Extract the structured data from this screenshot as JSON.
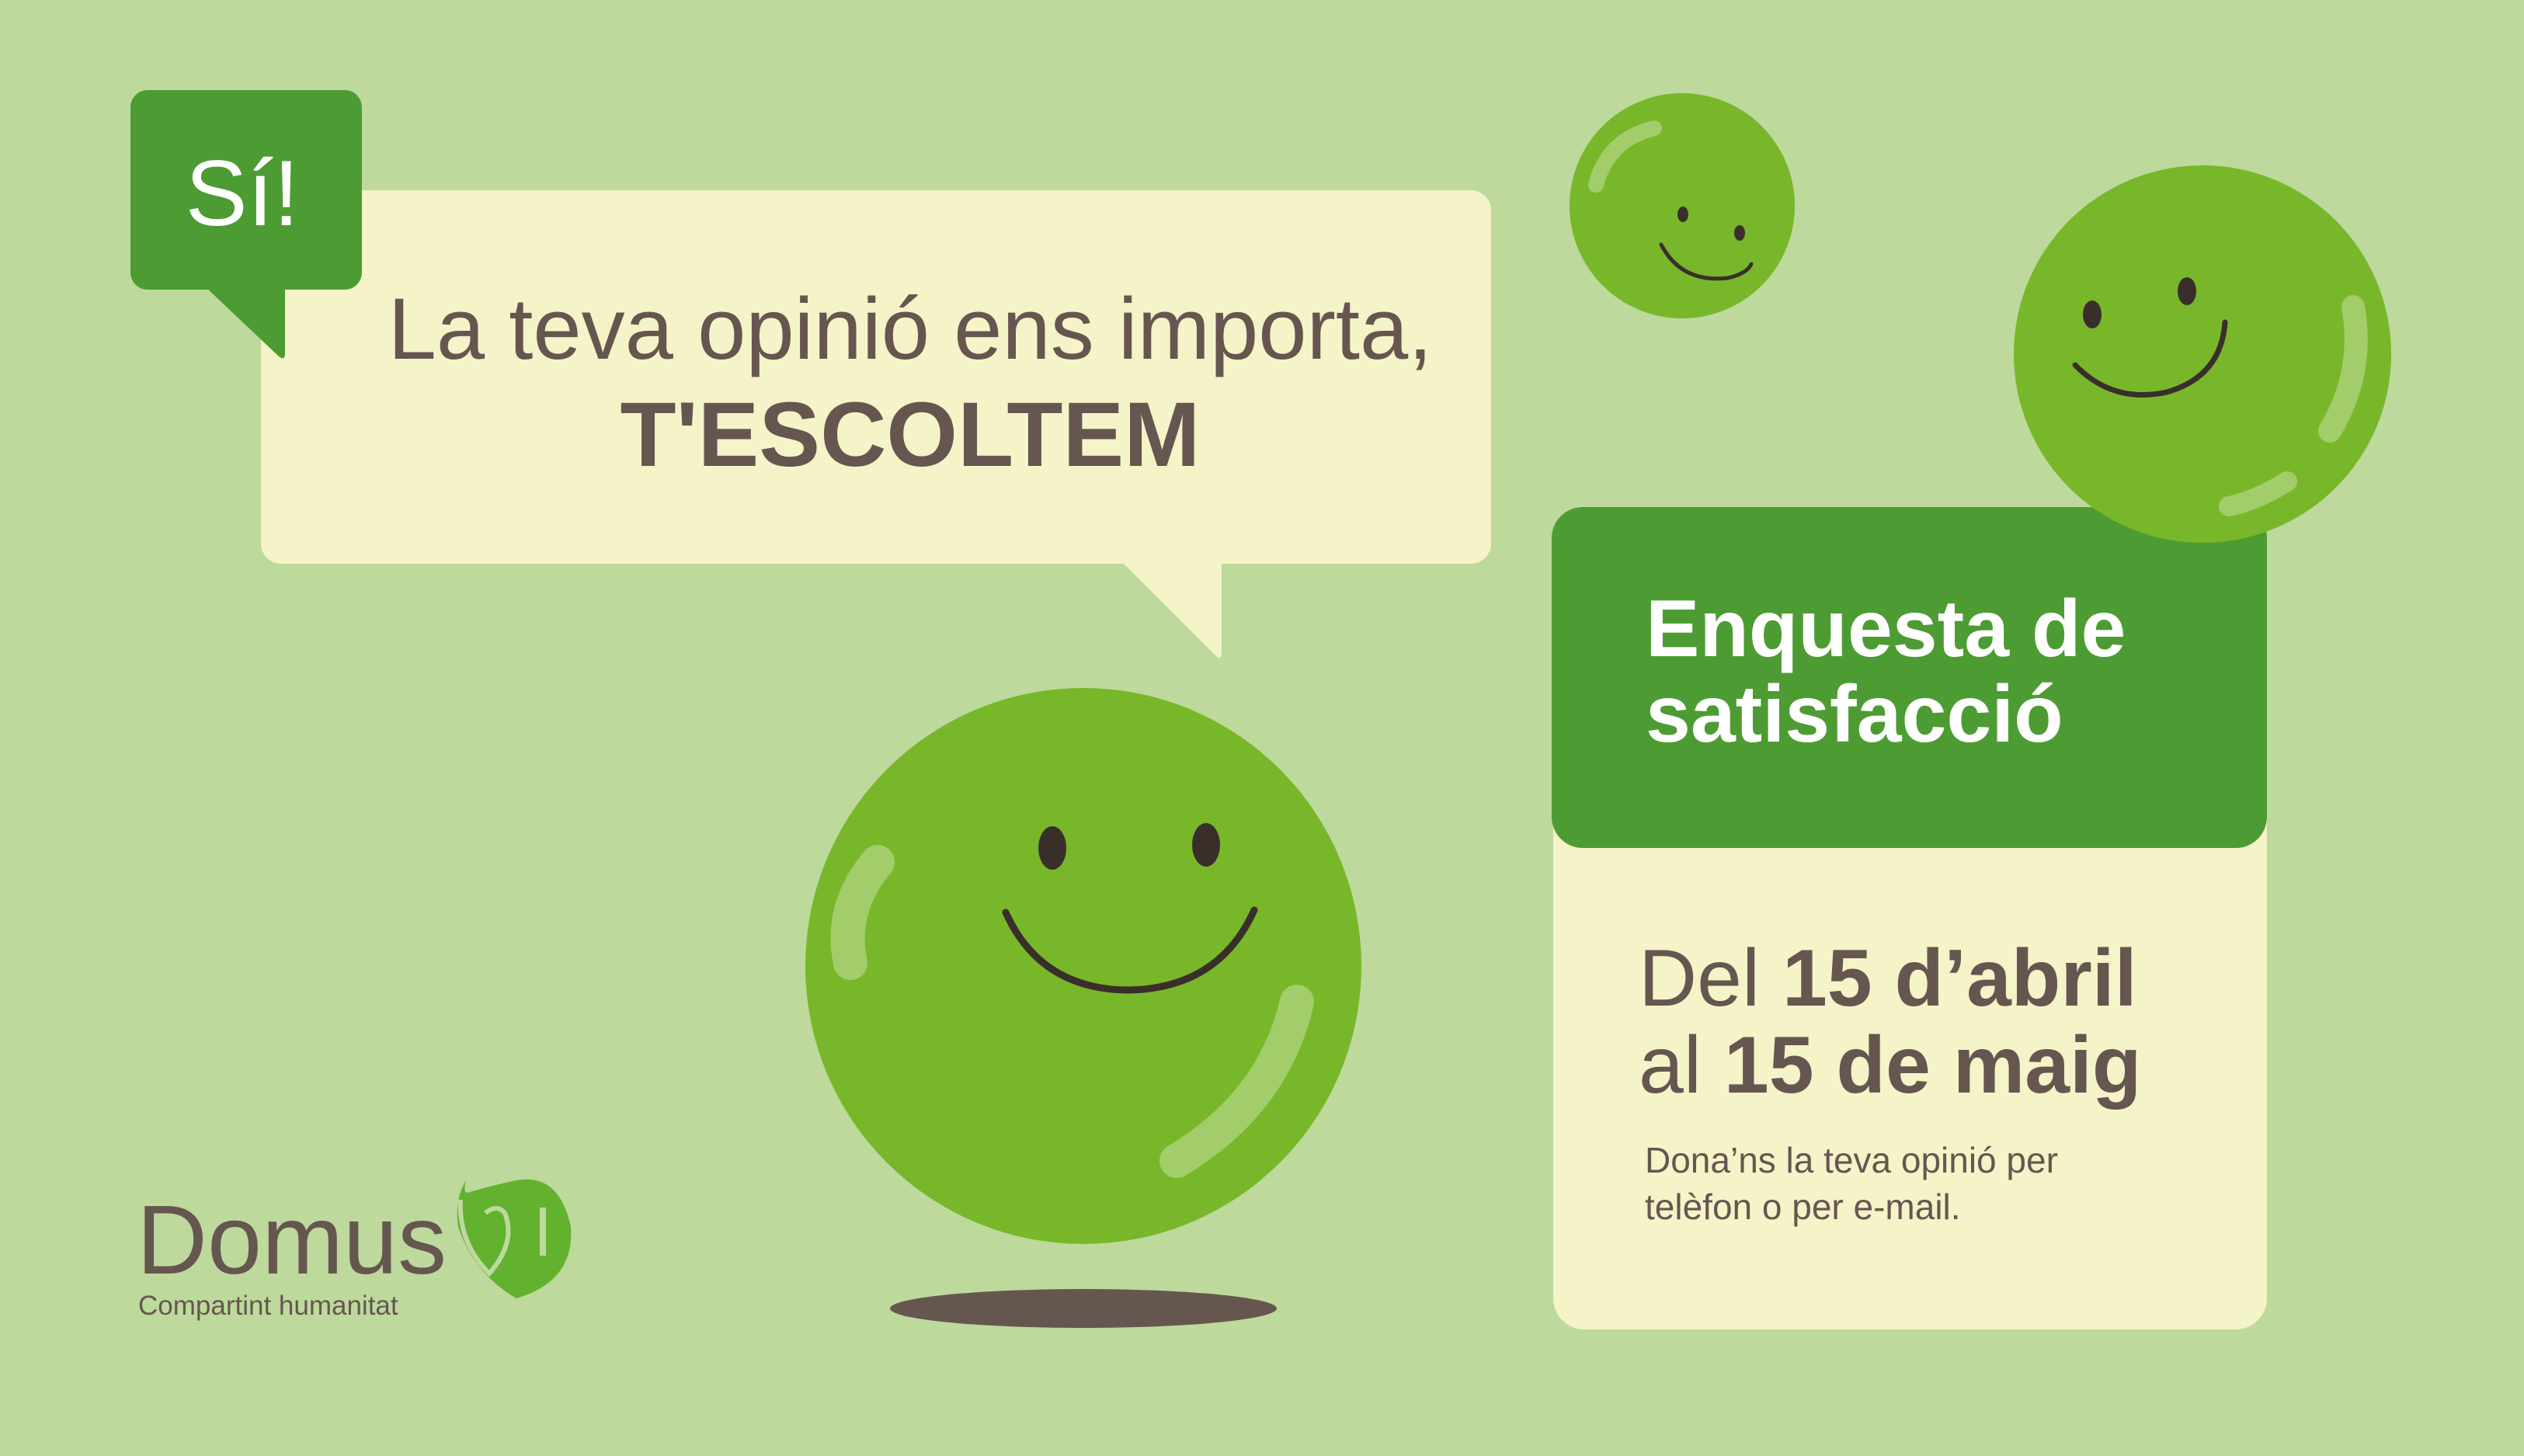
{
  "colors": {
    "background": "#bdd99c",
    "dark_green": "#4d9c33",
    "smiley_green": "#78b72a",
    "cream": "#f5f3c8",
    "text_brown": "#665650"
  },
  "badge": {
    "label": "Sí!"
  },
  "speech": {
    "line1": "La teva opinió ens importa,",
    "line2": "T'ESCOLTEM"
  },
  "survey": {
    "title_line1": "Enquesta de",
    "title_line2": "satisfacció",
    "date_line1_prefix": "Del",
    "date_line1_bold": "15 d’abril",
    "date_line2_prefix": "al",
    "date_line2_bold": "15 de maig",
    "note_line1": "Dona’ns la teva opinió per",
    "note_line2": "telèfon o per e-mail."
  },
  "logo": {
    "brand": "DomusVi",
    "brand_text": "Domus",
    "tagline": "Compartint humanitat"
  },
  "icons": [
    "smiley-face-icon",
    "smiley-face-icon",
    "smiley-face-icon",
    "heart-logo-icon"
  ]
}
